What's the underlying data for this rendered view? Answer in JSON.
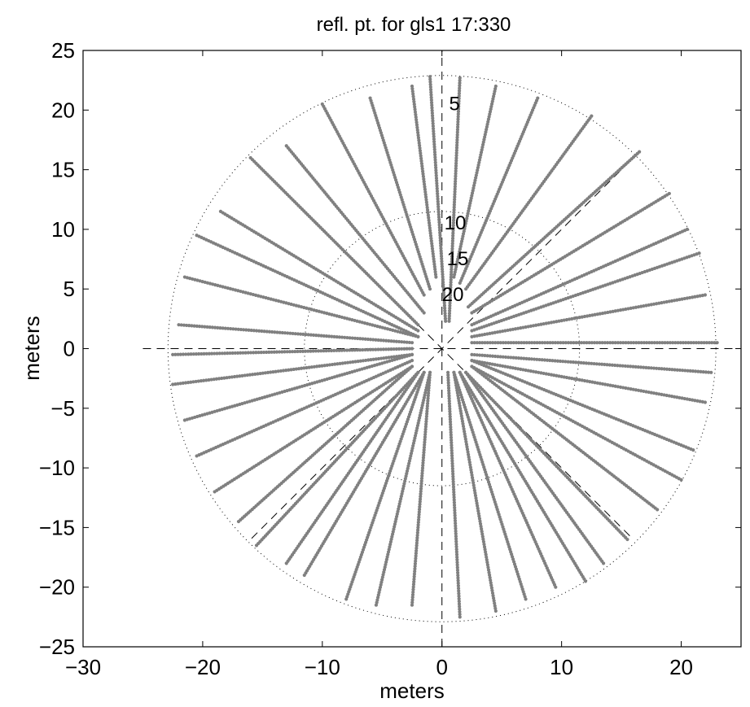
{
  "chart_data": {
    "type": "scatter",
    "title": "refl. pt. for gls1 17:330",
    "xlabel": "meters",
    "ylabel": "meters",
    "xlim": [
      -30,
      25
    ],
    "ylim": [
      -25,
      25
    ],
    "xticks": [
      -30,
      -20,
      -10,
      0,
      10,
      20
    ],
    "yticks": [
      -25,
      -20,
      -15,
      -10,
      -5,
      0,
      5,
      10,
      15,
      20,
      25
    ],
    "xtick_labels": [
      "−30",
      "−20",
      "−10",
      "0",
      "10",
      "20"
    ],
    "ytick_labels": [
      "−25",
      "−20",
      "−15",
      "−10",
      "−5",
      "0",
      "5",
      "10",
      "15",
      "20",
      "25"
    ],
    "grid": false,
    "polar_grid": {
      "circle_radii": [
        11.5,
        22.9
      ],
      "crosshair_extent": 25,
      "diagonal_extent": 22.5,
      "elevation_labels": [
        {
          "text": "5",
          "x": 0.6,
          "y": 20
        },
        {
          "text": "10",
          "x": 0.2,
          "y": 10
        },
        {
          "text": "15",
          "x": 0.4,
          "y": 7
        },
        {
          "text": "20",
          "x": 0.0,
          "y": 4
        }
      ]
    },
    "point_color": "#808080",
    "tracks": [
      {
        "start": [
          0.3,
          2.3
        ],
        "end": [
          -1.0,
          22.8
        ]
      },
      {
        "start": [
          0.6,
          2.3
        ],
        "end": [
          1.5,
          22.7
        ]
      },
      {
        "start": [
          -0.5,
          6.0
        ],
        "end": [
          -2.5,
          22.0
        ]
      },
      {
        "start": [
          1.0,
          6.0
        ],
        "end": [
          4.5,
          22.0
        ]
      },
      {
        "start": [
          -1.0,
          5.0
        ],
        "end": [
          -6.0,
          21.0
        ]
      },
      {
        "start": [
          1.5,
          5.5
        ],
        "end": [
          8.0,
          21.0
        ]
      },
      {
        "start": [
          -1.5,
          4.5
        ],
        "end": [
          -10.0,
          20.5
        ]
      },
      {
        "start": [
          2.0,
          5.0
        ],
        "end": [
          12.5,
          19.5
        ]
      },
      {
        "start": [
          -1.5,
          3.0
        ],
        "end": [
          -13.0,
          17.0
        ]
      },
      {
        "start": [
          2.2,
          3.5
        ],
        "end": [
          16.5,
          16.5
        ]
      },
      {
        "start": [
          -2.0,
          2.0
        ],
        "end": [
          -16.0,
          16.0
        ]
      },
      {
        "start": [
          2.5,
          3.0
        ],
        "end": [
          19.0,
          13.0
        ]
      },
      {
        "start": [
          -2.0,
          1.5
        ],
        "end": [
          -18.5,
          11.5
        ]
      },
      {
        "start": [
          2.5,
          2.0
        ],
        "end": [
          20.5,
          10.0
        ]
      },
      {
        "start": [
          -2.0,
          1.0
        ],
        "end": [
          -20.5,
          9.5
        ]
      },
      {
        "start": [
          2.5,
          1.5
        ],
        "end": [
          21.5,
          8.0
        ]
      },
      {
        "start": [
          -2.0,
          1.0
        ],
        "end": [
          -21.5,
          6.0
        ]
      },
      {
        "start": [
          2.5,
          1.0
        ],
        "end": [
          22.0,
          4.5
        ]
      },
      {
        "start": [
          -2.5,
          0.5
        ],
        "end": [
          -22.0,
          2.0
        ]
      },
      {
        "start": [
          2.5,
          0.5
        ],
        "end": [
          23.0,
          0.5
        ]
      },
      {
        "start": [
          -2.5,
          0.0
        ],
        "end": [
          -22.5,
          -0.5
        ]
      },
      {
        "start": [
          2.5,
          -0.5
        ],
        "end": [
          22.5,
          -2.0
        ]
      },
      {
        "start": [
          -2.5,
          -0.5
        ],
        "end": [
          -22.5,
          -3.0
        ]
      },
      {
        "start": [
          2.5,
          -1.0
        ],
        "end": [
          22.0,
          -4.5
        ]
      },
      {
        "start": [
          -2.5,
          -0.5
        ],
        "end": [
          -21.5,
          -6.0
        ]
      },
      {
        "start": [
          2.5,
          -1.0
        ],
        "end": [
          21.0,
          -8.5
        ]
      },
      {
        "start": [
          -2.5,
          -1.0
        ],
        "end": [
          -20.5,
          -9.0
        ]
      },
      {
        "start": [
          2.5,
          -1.5
        ],
        "end": [
          20.0,
          -11.0
        ]
      },
      {
        "start": [
          -2.5,
          -1.5
        ],
        "end": [
          -19.0,
          -12.0
        ]
      },
      {
        "start": [
          2.5,
          -1.5
        ],
        "end": [
          18.0,
          -13.5
        ]
      },
      {
        "start": [
          -2.5,
          -1.5
        ],
        "end": [
          -17.0,
          -14.5
        ]
      },
      {
        "start": [
          2.0,
          -2.0
        ],
        "end": [
          15.5,
          -16.0
        ]
      },
      {
        "start": [
          -2.0,
          -2.0
        ],
        "end": [
          -15.5,
          -16.5
        ]
      },
      {
        "start": [
          2.0,
          -2.0
        ],
        "end": [
          13.5,
          -18.0
        ]
      },
      {
        "start": [
          -2.0,
          -2.0
        ],
        "end": [
          -13.0,
          -18.0
        ]
      },
      {
        "start": [
          1.5,
          -2.0
        ],
        "end": [
          12.0,
          -19.5
        ]
      },
      {
        "start": [
          -1.5,
          -2.0
        ],
        "end": [
          -11.5,
          -19.0
        ]
      },
      {
        "start": [
          1.5,
          -2.0
        ],
        "end": [
          9.5,
          -20.0
        ]
      },
      {
        "start": [
          -1.5,
          -2.0
        ],
        "end": [
          -8.0,
          -21.0
        ]
      },
      {
        "start": [
          1.0,
          -2.0
        ],
        "end": [
          7.0,
          -21.0
        ]
      },
      {
        "start": [
          -1.0,
          -2.0
        ],
        "end": [
          -5.5,
          -21.5
        ]
      },
      {
        "start": [
          1.0,
          -2.0
        ],
        "end": [
          4.5,
          -22.0
        ]
      },
      {
        "start": [
          -1.0,
          -2.0
        ],
        "end": [
          -2.5,
          -21.5
        ]
      },
      {
        "start": [
          0.5,
          -2.0
        ],
        "end": [
          1.5,
          -22.5
        ]
      }
    ]
  }
}
